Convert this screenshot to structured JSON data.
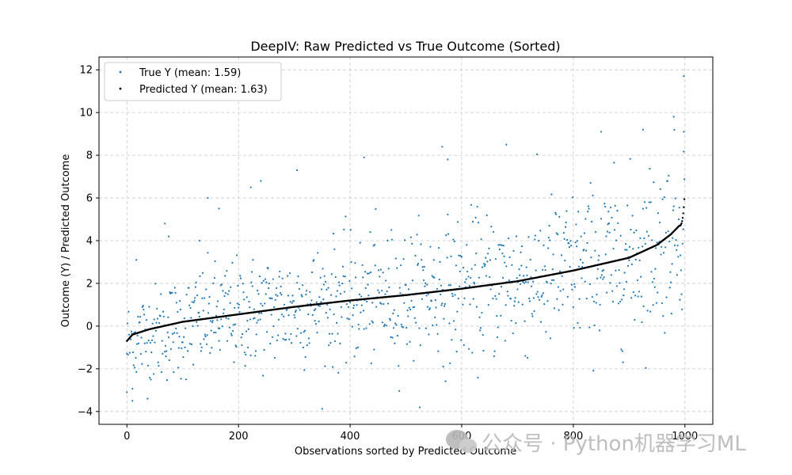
{
  "chart_data": {
    "type": "scatter",
    "title": "DeepIV: Raw Predicted vs True Outcome (Sorted)",
    "xlabel": "Observations sorted by Predicted Outcome",
    "ylabel": "Outcome (Y) / Predicted Outcome",
    "xlim": [
      -50,
      1050
    ],
    "ylim": [
      -4.6,
      12.6
    ],
    "xticks": [
      0,
      200,
      400,
      600,
      800,
      1000
    ],
    "yticks": [
      -4,
      -2,
      0,
      2,
      4,
      6,
      8,
      10,
      12
    ],
    "grid": true,
    "legend_position": "top-left",
    "n_points": 1000,
    "series": [
      {
        "name": "True Y (mean: 1.59)",
        "color": "#1f77b4",
        "marker": "dot",
        "mean": 1.59,
        "points_described": "noisy points scattered around the predicted curve, spread roughly -4 to 11.7",
        "highlights": [
          [
            0,
            -3.1
          ],
          [
            10,
            -3.5
          ],
          [
            17,
            3.1
          ],
          [
            68,
            4.8
          ],
          [
            75,
            4.2
          ],
          [
            130,
            4.0
          ],
          [
            145,
            6.0
          ],
          [
            165,
            5.5
          ],
          [
            222,
            6.5
          ],
          [
            240,
            6.8
          ],
          [
            305,
            7.3
          ],
          [
            425,
            7.9
          ],
          [
            565,
            8.4
          ],
          [
            575,
            7.8
          ],
          [
            680,
            8.5
          ],
          [
            850,
            9.1
          ],
          [
            925,
            9.2
          ],
          [
            980,
            9.8
          ],
          [
            998,
            11.7
          ],
          [
            998,
            9.1
          ]
        ]
      },
      {
        "name": "Predicted Y (mean: 1.63)",
        "color": "#000000",
        "marker": "dot",
        "mean": 1.63,
        "curve_knots": [
          [
            0,
            -0.7
          ],
          [
            10,
            -0.4
          ],
          [
            40,
            -0.15
          ],
          [
            100,
            0.2
          ],
          [
            200,
            0.55
          ],
          [
            300,
            0.9
          ],
          [
            400,
            1.2
          ],
          [
            500,
            1.45
          ],
          [
            600,
            1.75
          ],
          [
            700,
            2.1
          ],
          [
            800,
            2.6
          ],
          [
            900,
            3.2
          ],
          [
            950,
            3.8
          ],
          [
            975,
            4.3
          ],
          [
            990,
            4.7
          ],
          [
            1000,
            6.4
          ]
        ]
      }
    ]
  },
  "watermark": {
    "text": "公众号 · Python机器学习ML",
    "icon": "wechat-icon"
  }
}
